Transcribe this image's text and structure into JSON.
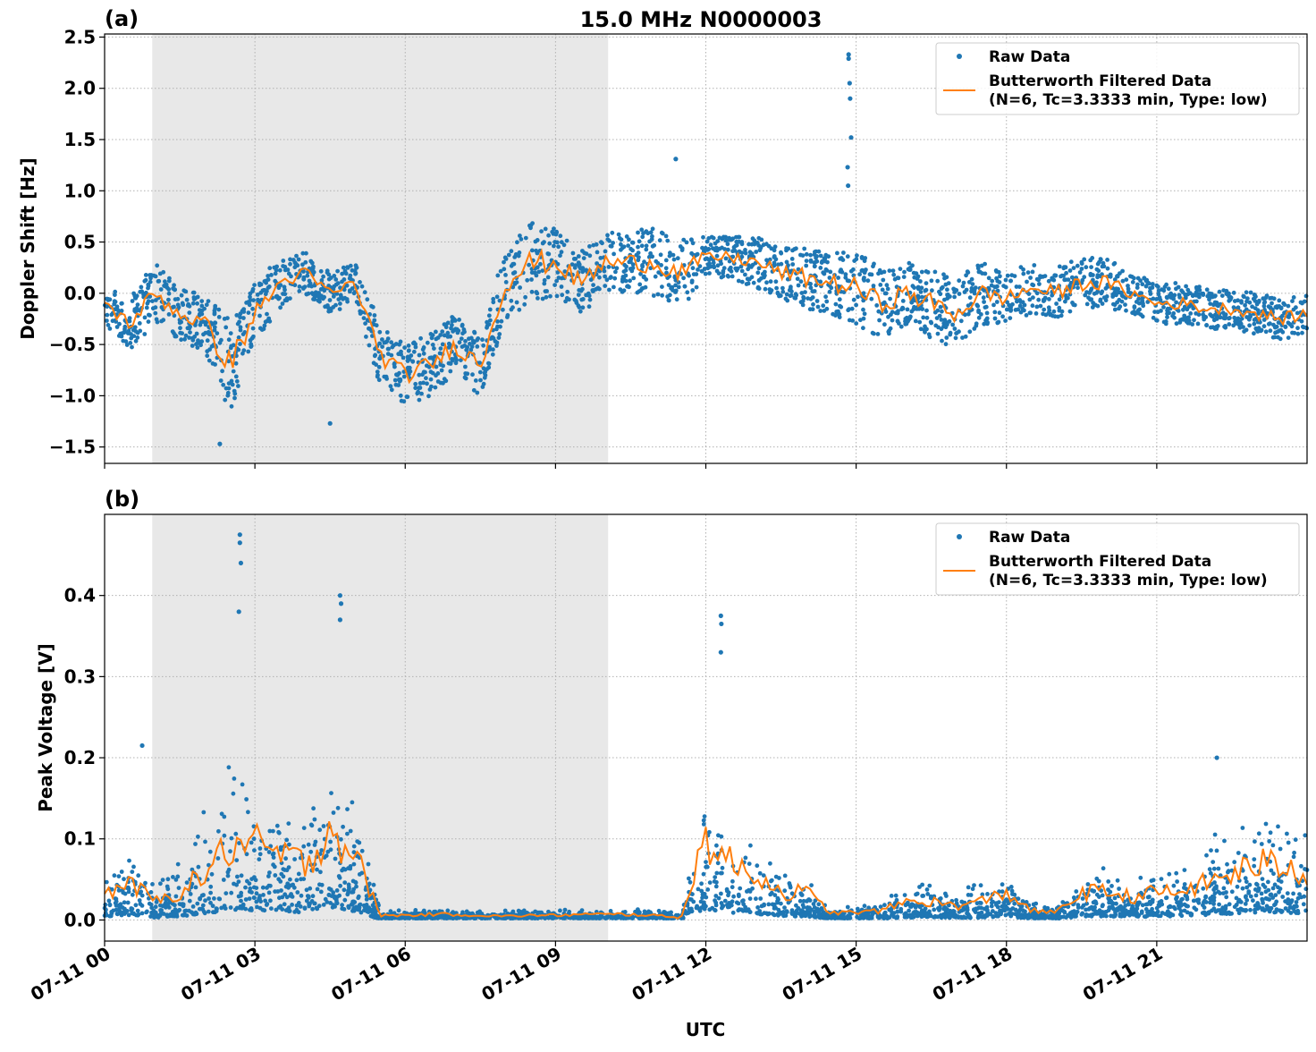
{
  "title": "15.0 MHz N0000003",
  "xlabel": "UTC",
  "x_tick_labels": [
    "07-11 00",
    "07-11 03",
    "07-11 06",
    "07-11 09",
    "07-11 12",
    "07-11 15",
    "07-11 18",
    "07-11 21"
  ],
  "colors": {
    "raw": "#1f77b4",
    "filtered": "#ff7f0e",
    "shade": "#e8e8e8"
  },
  "chart_data": [
    {
      "type": "scatter",
      "panel_label": "(a)",
      "ylabel": "Doppler Shift [Hz]",
      "xunit": "hours UTC on 07-11",
      "xlim": [
        0,
        24
      ],
      "ylim": [
        -1.66,
        2.53
      ],
      "yticks": [
        -1.5,
        -1.0,
        -0.5,
        0.0,
        0.5,
        1.0,
        1.5,
        2.0,
        2.5
      ],
      "ytick_labels": [
        "−1.5",
        "−1.0",
        "−0.5",
        "0.0",
        "0.5",
        "1.0",
        "1.5",
        "2.0",
        "2.5"
      ],
      "grid": true,
      "shaded_interval_hours": [
        0.95,
        10.05
      ],
      "legend": {
        "placement": "top-right",
        "entries": [
          "Raw Data",
          "Butterworth Filtered Data",
          "(N=6, Tc=3.3333 min, Type: low)"
        ]
      },
      "x": [
        0,
        0.5,
        1,
        1.5,
        2,
        2.5,
        3,
        3.5,
        4,
        4.5,
        5,
        5.5,
        6,
        6.5,
        7,
        7.5,
        8,
        8.5,
        9,
        9.5,
        10,
        10.5,
        11,
        11.5,
        12,
        12.5,
        13,
        13.5,
        14,
        14.5,
        15,
        15.5,
        16,
        16.5,
        17,
        17.5,
        18,
        18.5,
        19,
        19.5,
        20,
        20.5,
        21,
        21.5,
        22,
        22.5,
        23,
        23.5,
        24
      ],
      "series": [
        {
          "name": "Butterworth Filtered Data",
          "kind": "line",
          "values": [
            -0.1,
            -0.3,
            0.0,
            -0.2,
            -0.3,
            -0.7,
            -0.2,
            0.1,
            0.2,
            0.0,
            0.1,
            -0.6,
            -0.8,
            -0.7,
            -0.5,
            -0.7,
            0.1,
            0.3,
            0.3,
            0.1,
            0.3,
            0.3,
            0.3,
            0.2,
            0.35,
            0.35,
            0.3,
            0.2,
            0.15,
            0.1,
            0.05,
            -0.1,
            0.0,
            -0.1,
            -0.2,
            0.0,
            -0.05,
            0.05,
            0.0,
            0.1,
            0.1,
            0.0,
            -0.1,
            -0.1,
            -0.15,
            -0.15,
            -0.2,
            -0.25,
            -0.2
          ]
        },
        {
          "name": "Raw Data",
          "kind": "scatter-band",
          "spread": [
            0.2,
            0.25,
            0.3,
            0.25,
            0.3,
            0.45,
            0.3,
            0.25,
            0.2,
            0.2,
            0.2,
            0.3,
            0.3,
            0.3,
            0.3,
            0.3,
            0.35,
            0.4,
            0.35,
            0.3,
            0.3,
            0.3,
            0.35,
            0.35,
            0.2,
            0.2,
            0.25,
            0.25,
            0.3,
            0.3,
            0.35,
            0.35,
            0.3,
            0.35,
            0.35,
            0.3,
            0.25,
            0.25,
            0.25,
            0.25,
            0.25,
            0.2,
            0.2,
            0.2,
            0.2,
            0.2,
            0.2,
            0.2,
            0.2
          ],
          "outliers": [
            [
              14.85,
              2.33
            ],
            [
              14.85,
              2.29
            ],
            [
              14.87,
              2.05
            ],
            [
              14.88,
              1.9
            ],
            [
              14.9,
              1.52
            ],
            [
              14.83,
              1.23
            ],
            [
              14.84,
              1.05
            ],
            [
              11.4,
              1.31
            ],
            [
              4.5,
              -1.27
            ],
            [
              2.3,
              -1.47
            ]
          ]
        }
      ]
    },
    {
      "type": "scatter",
      "panel_label": "(b)",
      "ylabel": "Peak Voltage [V]",
      "xunit": "hours UTC on 07-11",
      "xlim": [
        0,
        24
      ],
      "ylim": [
        -0.026,
        0.5
      ],
      "yticks": [
        0.0,
        0.1,
        0.2,
        0.3,
        0.4
      ],
      "ytick_labels": [
        "0.0",
        "0.1",
        "0.2",
        "0.3",
        "0.4"
      ],
      "grid": true,
      "shaded_interval_hours": [
        0.95,
        10.05
      ],
      "legend": {
        "placement": "top-right",
        "entries": [
          "Raw Data",
          "Butterworth Filtered Data",
          "(N=6, Tc=3.3333 min, Type: low)"
        ]
      },
      "x": [
        0,
        0.5,
        1,
        1.5,
        2,
        2.5,
        3,
        3.5,
        4,
        4.5,
        5,
        5.5,
        6,
        6.5,
        7,
        7.5,
        8,
        8.5,
        9,
        9.5,
        10,
        10.5,
        11,
        11.5,
        12,
        12.5,
        13,
        13.5,
        14,
        14.5,
        15,
        15.5,
        16,
        16.5,
        17,
        17.5,
        18,
        18.5,
        19,
        19.5,
        20,
        20.5,
        21,
        21.5,
        22,
        22.5,
        23,
        23.5,
        24
      ],
      "series": [
        {
          "name": "Butterworth Filtered Data",
          "kind": "line",
          "values": [
            0.03,
            0.04,
            0.02,
            0.03,
            0.05,
            0.08,
            0.08,
            0.07,
            0.06,
            0.1,
            0.07,
            0.005,
            0.005,
            0.006,
            0.006,
            0.005,
            0.004,
            0.005,
            0.005,
            0.006,
            0.006,
            0.006,
            0.005,
            0.002,
            0.09,
            0.06,
            0.05,
            0.03,
            0.03,
            0.008,
            0.008,
            0.01,
            0.02,
            0.02,
            0.015,
            0.02,
            0.03,
            0.01,
            0.008,
            0.03,
            0.03,
            0.025,
            0.03,
            0.03,
            0.04,
            0.05,
            0.06,
            0.06,
            0.05
          ]
        },
        {
          "name": "Raw Data",
          "kind": "scatter-band",
          "spread": [
            0.04,
            0.05,
            0.03,
            0.05,
            0.1,
            0.15,
            0.1,
            0.09,
            0.09,
            0.13,
            0.1,
            0.008,
            0.008,
            0.008,
            0.008,
            0.007,
            0.007,
            0.008,
            0.008,
            0.008,
            0.008,
            0.008,
            0.008,
            0.006,
            0.1,
            0.07,
            0.06,
            0.04,
            0.04,
            0.01,
            0.01,
            0.015,
            0.03,
            0.03,
            0.025,
            0.03,
            0.04,
            0.015,
            0.012,
            0.04,
            0.04,
            0.035,
            0.04,
            0.05,
            0.07,
            0.08,
            0.08,
            0.08,
            0.07
          ],
          "outliers": [
            [
              2.7,
              0.475
            ],
            [
              2.7,
              0.465
            ],
            [
              2.72,
              0.44
            ],
            [
              2.68,
              0.38
            ],
            [
              4.7,
              0.4
            ],
            [
              4.72,
              0.39
            ],
            [
              4.7,
              0.37
            ],
            [
              12.3,
              0.375
            ],
            [
              12.31,
              0.365
            ],
            [
              12.3,
              0.33
            ],
            [
              0.75,
              0.215
            ],
            [
              22.2,
              0.2
            ]
          ]
        }
      ]
    }
  ]
}
